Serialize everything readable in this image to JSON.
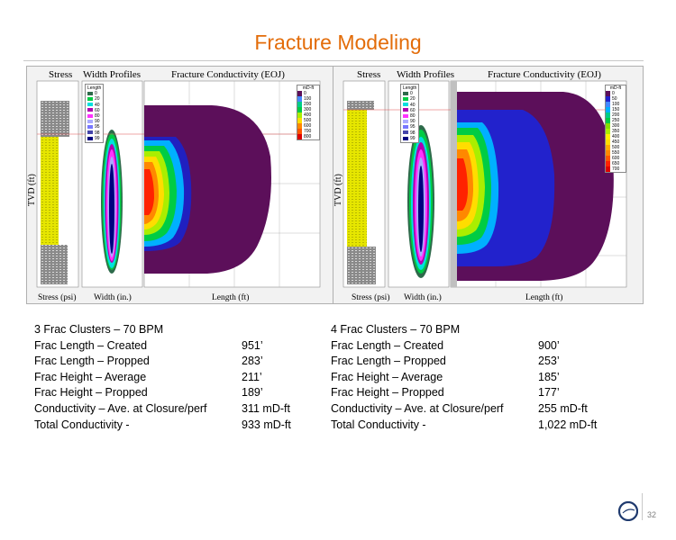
{
  "slide": {
    "title": "Fracture Modeling",
    "page_number": "32"
  },
  "panels": [
    {
      "stress_label": "Stress",
      "width_label": "Width Profiles",
      "conductivity_label": "Fracture Conductivity (EOJ)",
      "y_axis_label": "TVD (ft)",
      "x_stress_label": "Stress (psi)",
      "x_width_label": "Width (in.)",
      "x_length_label": "Length (ft)",
      "legend_title": "Length",
      "legend_items": [
        "0",
        "20",
        "40",
        "60",
        "80",
        "90",
        "95",
        "98",
        "99"
      ],
      "colorbar_title": "mD-ft",
      "colorbar_items": [
        "0",
        "100",
        "200",
        "300",
        "400",
        "500",
        "600",
        "700",
        "800"
      ]
    },
    {
      "stress_label": "Stress",
      "width_label": "Width Profiles",
      "conductivity_label": "Fracture Conductivity (EOJ)",
      "y_axis_label": "TVD (ft)",
      "x_stress_label": "Stress (psi)",
      "x_width_label": "Width (in.)",
      "x_length_label": "Length (ft)",
      "legend_title": "Length",
      "legend_items": [
        "0",
        "20",
        "40",
        "60",
        "80",
        "90",
        "95",
        "98",
        "99"
      ],
      "colorbar_title": "mD-ft",
      "colorbar_items": [
        "0",
        "50",
        "100",
        "150",
        "200",
        "250",
        "300",
        "350",
        "400",
        "450",
        "500",
        "550",
        "600",
        "650",
        "700"
      ]
    }
  ],
  "cases": [
    {
      "heading": "3 Frac Clusters – 70 BPM",
      "rows": [
        {
          "label": "Frac Length – Created",
          "value": "951’"
        },
        {
          "label": "Frac Length – Propped",
          "value": "283’"
        },
        {
          "label": "Frac Height – Average",
          "value": "211’"
        },
        {
          "label": "Frac Height – Propped",
          "value": "189’"
        },
        {
          "label": "Conductivity – Ave. at Closure/perf",
          "value": "311 mD-ft"
        },
        {
          "label": "Total Conductivity -",
          "value": "933 mD-ft"
        }
      ]
    },
    {
      "heading": "4 Frac Clusters – 70 BPM",
      "rows": [
        {
          "label": "Frac Length – Created",
          "value": "900’"
        },
        {
          "label": "Frac Length – Propped",
          "value": "253’"
        },
        {
          "label": "Frac Height – Average",
          "value": "185’"
        },
        {
          "label": "Frac Height – Propped",
          "value": "177’"
        },
        {
          "label": "Conductivity – Ave. at Closure/perf",
          "value": "255 mD-ft"
        },
        {
          "label": "Total Conductivity -",
          "value": "1,022 mD-ft"
        }
      ]
    }
  ],
  "colors": {
    "title": "#e36c09",
    "fracture_outer": "#5c0f5a",
    "stress_log": "#e6e600"
  },
  "icons": {
    "logo": "company-logo-icon"
  }
}
